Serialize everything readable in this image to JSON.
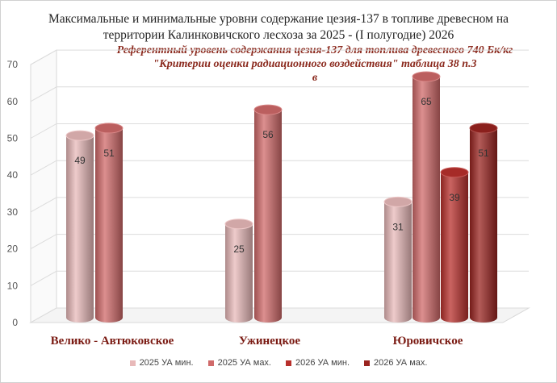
{
  "chart_data": {
    "type": "bar",
    "title_line1": "Максимальные и минимальные уровни содержание цезия-137 в топливе древесном на",
    "title_line2": "территории Калинковичского лесхоза за 2025 - (I полугодие) 2026",
    "subtitle_lines": [
      "Референтный уровень содержания цезия-137 для топлива древесного 740 Бк/кг",
      "\"Критерии оценки радиационного воздействия\" таблица 38 п.3",
      "в"
    ],
    "categories": [
      "Велико - Автюковское",
      "Ужинецкое",
      "Юровичское"
    ],
    "series": [
      {
        "name": "2025 УА мин.",
        "values": [
          49,
          25,
          31
        ],
        "color": "#e8b9b9"
      },
      {
        "name": "2025 УА мах.",
        "values": [
          51,
          56,
          65
        ],
        "color": "#d06a6a"
      },
      {
        "name": "2026 УА мин.",
        "values": [
          null,
          null,
          39
        ],
        "color": "#b8302c"
      },
      {
        "name": "2026 УА мах.",
        "values": [
          null,
          null,
          51
        ],
        "color": "#9a2420"
      }
    ],
    "y_ticks": [
      "0",
      "10",
      "20",
      "30",
      "40",
      "50",
      "60",
      "70"
    ],
    "ylim": [
      0,
      70
    ],
    "grid": true,
    "legend_position": "bottom"
  }
}
